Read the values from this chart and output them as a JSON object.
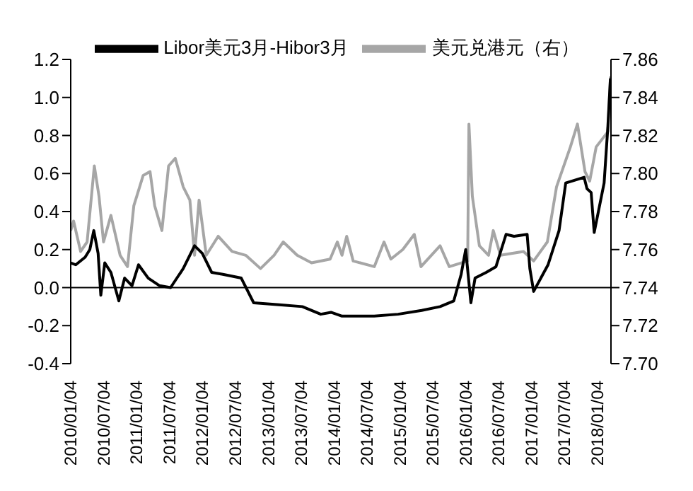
{
  "chart_data": {
    "type": "line",
    "legend": "top",
    "grid": false,
    "marker": "none",
    "line_style": "solid",
    "xlim": [
      "2010-01-04",
      "2018-03-20"
    ],
    "xticks": [
      {
        "value": "2010-01-04",
        "label": "2010/01/04"
      },
      {
        "value": "2010-07-04",
        "label": "2010/07/04"
      },
      {
        "value": "2011-01-04",
        "label": "2011/01/04"
      },
      {
        "value": "2011-07-04",
        "label": "2011/07/04"
      },
      {
        "value": "2012-01-04",
        "label": "2012/01/04"
      },
      {
        "value": "2012-07-04",
        "label": "2012/07/04"
      },
      {
        "value": "2013-01-04",
        "label": "2013/01/04"
      },
      {
        "value": "2013-07-04",
        "label": "2013/07/04"
      },
      {
        "value": "2014-01-04",
        "label": "2014/01/04"
      },
      {
        "value": "2014-07-04",
        "label": "2014/07/04"
      },
      {
        "value": "2015-01-04",
        "label": "2015/01/04"
      },
      {
        "value": "2015-07-04",
        "label": "2015/07/04"
      },
      {
        "value": "2016-01-04",
        "label": "2016/01/04"
      },
      {
        "value": "2016-07-04",
        "label": "2016/07/04"
      },
      {
        "value": "2017-01-04",
        "label": "2017/01/04"
      },
      {
        "value": "2017-07-04",
        "label": "2017/07/04"
      },
      {
        "value": "2018-01-04",
        "label": "2018/01/04"
      }
    ],
    "ylim": [
      -0.4,
      1.2
    ],
    "yticks": [
      -0.4,
      -0.2,
      {
        "value": 0,
        "label": "0.0"
      },
      0.2,
      0.4,
      0.6,
      0.8,
      {
        "value": 1,
        "label": "1.0"
      },
      1.2
    ],
    "y2lim": [
      7.7,
      7.86
    ],
    "y2ticks": [
      {
        "value": 7.7,
        "label": "7.70"
      },
      7.72,
      7.74,
      7.76,
      7.78,
      {
        "value": 7.8,
        "label": "7.80"
      },
      7.82,
      7.84,
      7.86
    ],
    "ref_lines": [
      {
        "axis": "y",
        "value": 0,
        "color": "#000000"
      }
    ],
    "series": [
      {
        "name": "美元兑港元（右）",
        "color": "#a6a6a6",
        "axis": "y2",
        "x": [
          "2010-01-04",
          "2010-01-20",
          "2010-02-28",
          "2010-04-05",
          "2010-05-15",
          "2010-06-10",
          "2010-07-05",
          "2010-08-15",
          "2010-10-05",
          "2010-11-15",
          "2010-12-20",
          "2011-02-10",
          "2011-03-20",
          "2011-04-15",
          "2011-05-25",
          "2011-07-01",
          "2011-08-07",
          "2011-09-20",
          "2011-10-27",
          "2011-11-22",
          "2011-12-17",
          "2012-01-26",
          "2012-04-01",
          "2012-06-17",
          "2012-09-01",
          "2012-11-22",
          "2013-02-05",
          "2013-03-28",
          "2013-06-13",
          "2013-09-01",
          "2013-12-13",
          "2014-01-22",
          "2014-02-17",
          "2014-03-15",
          "2014-04-20",
          "2014-08-15",
          "2014-10-08",
          "2014-11-15",
          "2015-01-20",
          "2015-03-25",
          "2015-05-01",
          "2015-08-15",
          "2015-10-05",
          "2016-01-15",
          "2016-01-22",
          "2016-02-10",
          "2016-03-20",
          "2016-05-10",
          "2016-06-05",
          "2016-07-15",
          "2016-11-20",
          "2017-01-15",
          "2017-04-01",
          "2017-05-22",
          "2017-08-07",
          "2017-09-15",
          "2017-10-27",
          "2017-11-22",
          "2017-12-28",
          "2018-03-03",
          "2018-03-17"
        ],
        "values": [
          7.77,
          7.775,
          7.759,
          7.764,
          7.804,
          7.788,
          7.764,
          7.778,
          7.757,
          7.751,
          7.783,
          7.799,
          7.801,
          7.783,
          7.77,
          7.804,
          7.808,
          7.793,
          7.786,
          7.757,
          7.786,
          7.757,
          7.767,
          7.759,
          7.757,
          7.75,
          7.757,
          7.764,
          7.757,
          7.753,
          7.755,
          7.764,
          7.757,
          7.767,
          7.754,
          7.751,
          7.764,
          7.755,
          7.76,
          7.768,
          7.751,
          7.762,
          7.751,
          7.754,
          7.826,
          7.788,
          7.762,
          7.757,
          7.77,
          7.757,
          7.759,
          7.754,
          7.764,
          7.793,
          7.814,
          7.826,
          7.801,
          7.796,
          7.814,
          7.822,
          7.851
        ]
      },
      {
        "name": "Libor美元3月-Hibor3月",
        "color": "#000000",
        "x": [
          "2010-01-04",
          "2010-02-01",
          "2010-03-25",
          "2010-04-20",
          "2010-05-12",
          "2010-06-05",
          "2010-06-20",
          "2010-07-12",
          "2010-08-15",
          "2010-09-28",
          "2010-10-30",
          "2010-12-10",
          "2011-01-15",
          "2011-03-10",
          "2011-05-12",
          "2011-07-12",
          "2011-09-20",
          "2011-11-22",
          "2012-01-04",
          "2012-02-25",
          "2012-04-27",
          "2012-08-07",
          "2012-10-15",
          "2013-03-05",
          "2013-07-12",
          "2013-10-22",
          "2013-12-18",
          "2014-02-17",
          "2014-08-15",
          "2014-12-25",
          "2015-05-05",
          "2015-08-15",
          "2015-10-30",
          "2015-12-10",
          "2016-01-04",
          "2016-02-02",
          "2016-02-25",
          "2016-04-27",
          "2016-06-20",
          "2016-08-15",
          "2016-09-28",
          "2016-12-10",
          "2016-12-25",
          "2017-01-15",
          "2017-04-05",
          "2017-06-05",
          "2017-07-12",
          "2017-10-22",
          "2017-11-07",
          "2017-11-30",
          "2017-12-17",
          "2018-02-10",
          "2018-03-03",
          "2018-03-17"
        ],
        "values": [
          0.13,
          0.12,
          0.16,
          0.2,
          0.3,
          0.18,
          -0.04,
          0.13,
          0.08,
          -0.07,
          0.05,
          0.01,
          0.12,
          0.05,
          0.01,
          0.0,
          0.1,
          0.22,
          0.18,
          0.08,
          0.07,
          0.05,
          -0.08,
          -0.09,
          -0.1,
          -0.14,
          -0.13,
          -0.15,
          -0.15,
          -0.14,
          -0.12,
          -0.1,
          -0.07,
          0.07,
          0.2,
          -0.08,
          0.05,
          0.08,
          0.11,
          0.28,
          0.27,
          0.28,
          0.1,
          -0.02,
          0.12,
          0.3,
          0.55,
          0.58,
          0.52,
          0.5,
          0.29,
          0.55,
          0.85,
          1.1
        ]
      }
    ]
  }
}
